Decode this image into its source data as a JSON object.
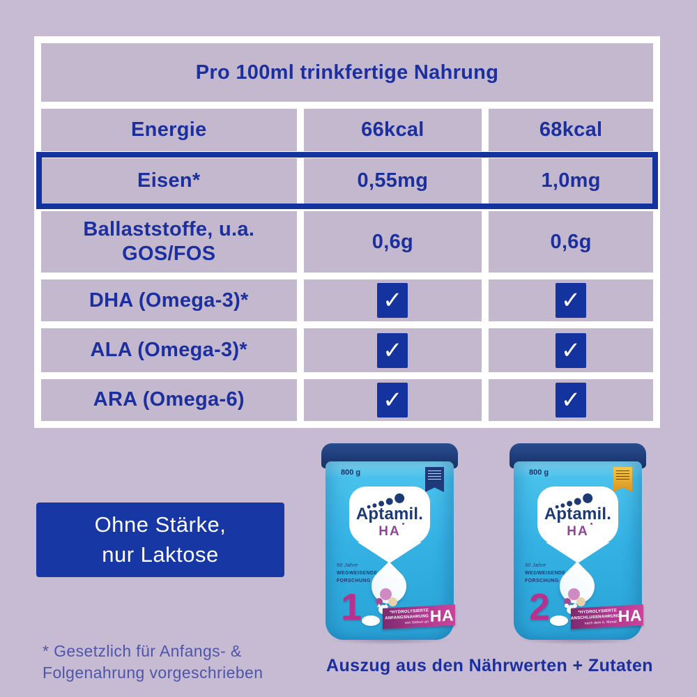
{
  "page": {
    "background": "#C7BBD4",
    "caption": "Auszug aus den Nährwerten + Zutaten"
  },
  "colors": {
    "accent_blue": "#15339F",
    "text_navy": "#1C2F9E",
    "footnote_blue": "#4D55A8",
    "cell_lavender": "#C3B8CD",
    "table_frame_white": "#FFFFFF",
    "claim_box_blue": "#1737A5",
    "can_body_cyan": "#35B2E4",
    "can_lid_navy": "#1E3C7A",
    "banner_magenta": "#C9449B",
    "stage_magenta": "#B5338F",
    "gold_badge": "#D8941F",
    "ha_purple": "#8E4796"
  },
  "icons": {
    "check": "✓"
  },
  "table": {
    "title": "Pro 100ml trinkfertige Nahrung",
    "rows": [
      {
        "label": "Energie",
        "values": [
          "66kcal",
          "68kcal"
        ],
        "highlighted": false
      },
      {
        "label": "Eisen*",
        "values": [
          "0,55mg",
          "1,0mg"
        ],
        "highlighted": true
      },
      {
        "label": "Ballaststoffe, u.a.",
        "label_line2": "GOS/FOS",
        "values": [
          "0,6g",
          "0,6g"
        ],
        "highlighted": false
      },
      {
        "label": "DHA (Omega-3)*",
        "checks": [
          true,
          true
        ],
        "highlighted": false
      },
      {
        "label": "ALA (Omega-3)*",
        "checks": [
          true,
          true
        ],
        "highlighted": false
      },
      {
        "label": "ARA (Omega-6)",
        "checks": [
          true,
          true
        ],
        "highlighted": false
      }
    ]
  },
  "claim_box": {
    "line1": "Ohne Stärke,",
    "line2": "nur Laktose"
  },
  "footnote": {
    "line1": "* Gesetzlich für Anfangs- &",
    "line2": "Folgenahrung vorgeschrieben"
  },
  "products": [
    {
      "weight": "800 g",
      "brand": "Aptamil.",
      "sub_brand": "HA",
      "heritage_line1": "50 Jahre",
      "heritage_line2": "WEGWEISENDE",
      "heritage_line3": "FORSCHUNG",
      "stage": "1",
      "banner_line1": "*HYDROLYSIERTE",
      "banner_line2": "ANFANGSNAHRUNG",
      "banner_line3": "von Geburt an",
      "banner_ha": "HA"
    },
    {
      "weight": "800 g",
      "brand": "Aptamil.",
      "sub_brand": "HA",
      "heritage_line1": "50 Jahre",
      "heritage_line2": "WEGWEISENDE",
      "heritage_line3": "FORSCHUNG",
      "stage": "2",
      "banner_line1": "*HYDROLYSIERTE",
      "banner_line2": "ANSCHLUSSNAHRUNG",
      "banner_line3": "nach dem 6. Monat",
      "banner_ha": "HA"
    }
  ]
}
